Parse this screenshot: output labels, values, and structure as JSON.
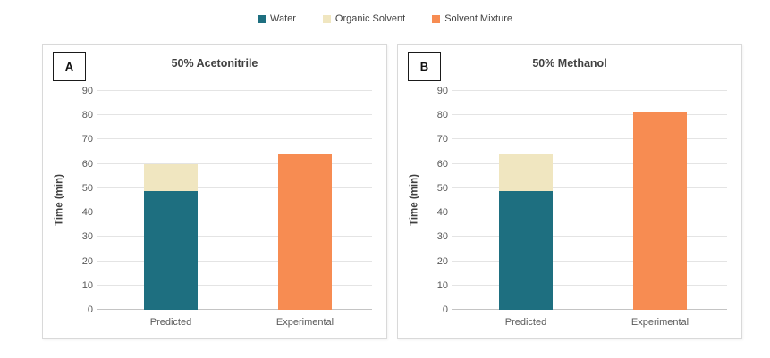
{
  "legend": {
    "items": [
      {
        "label": "Water",
        "color": "#1E6F80"
      },
      {
        "label": "Organic Solvent",
        "color": "#F0E6C0"
      },
      {
        "label": "Solvent Mixture",
        "color": "#F78C52"
      }
    ]
  },
  "chart_data": [
    {
      "type": "bar",
      "stacked": true,
      "panel_label": "A",
      "title": "50% Acetonitrile",
      "xlabel": "",
      "ylabel": "Time (min)",
      "ylim": [
        0,
        90
      ],
      "ytick_step": 10,
      "grid": "horizontal",
      "categories": [
        "Predicted",
        "Experimental"
      ],
      "series": [
        {
          "name": "Water",
          "color": "#1E6F80",
          "values": [
            49,
            0
          ]
        },
        {
          "name": "Organic Solvent",
          "color": "#F0E6C0",
          "values": [
            11,
            0
          ]
        },
        {
          "name": "Solvent Mixture",
          "color": "#F78C52",
          "values": [
            0,
            64
          ]
        }
      ]
    },
    {
      "type": "bar",
      "stacked": true,
      "panel_label": "B",
      "title": "50% Methanol",
      "xlabel": "",
      "ylabel": "Time (min)",
      "ylim": [
        0,
        90
      ],
      "ytick_step": 10,
      "grid": "horizontal",
      "categories": [
        "Predicted",
        "Experimental"
      ],
      "series": [
        {
          "name": "Water",
          "color": "#1E6F80",
          "values": [
            49,
            0
          ]
        },
        {
          "name": "Organic Solvent",
          "color": "#F0E6C0",
          "values": [
            15,
            0
          ]
        },
        {
          "name": "Solvent Mixture",
          "color": "#F78C52",
          "values": [
            0,
            81.5
          ]
        }
      ]
    }
  ]
}
